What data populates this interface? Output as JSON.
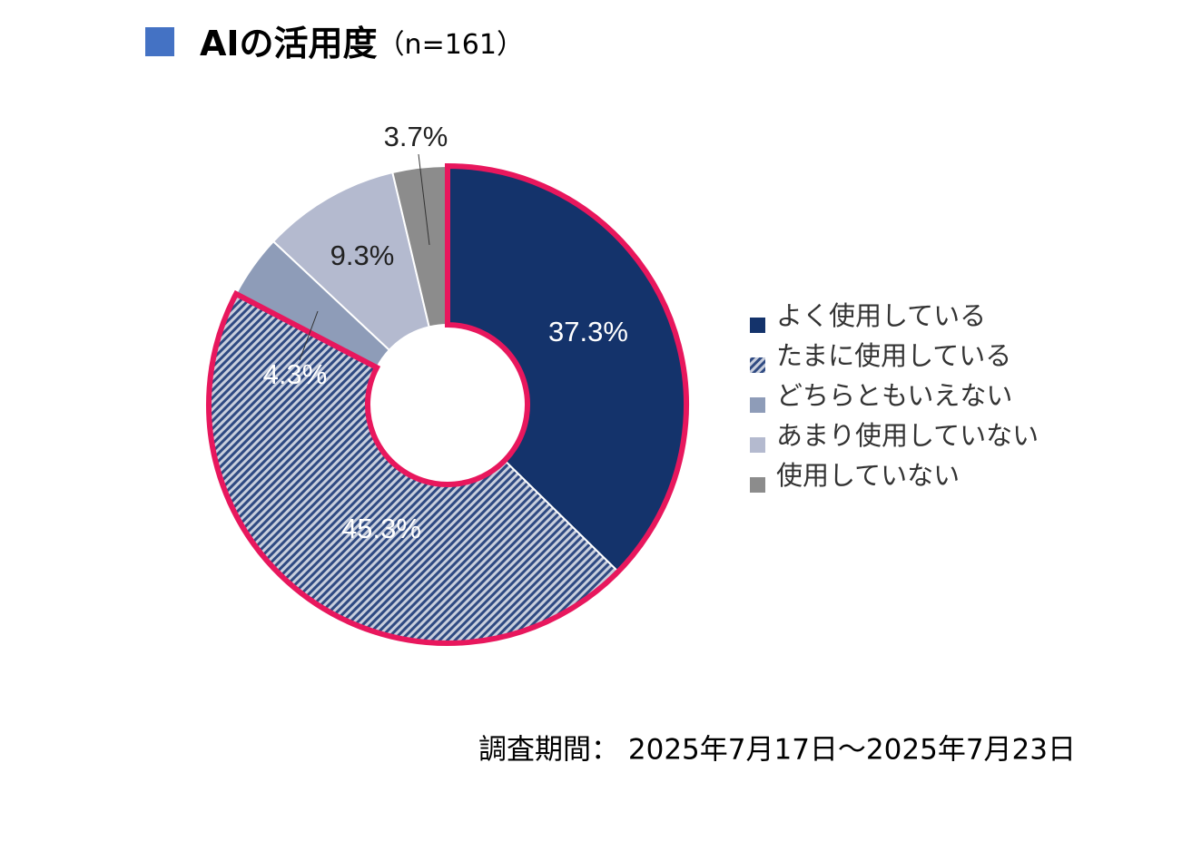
{
  "chart_data": {
    "type": "donut",
    "title": "AIの活用度",
    "subtitle": "（n=161）",
    "categories": [
      "よく使用している",
      "たまに使用している",
      "どちらともいえない",
      "あまり使用していない",
      "使用していない"
    ],
    "values": [
      37.3,
      45.3,
      4.3,
      9.3,
      3.7
    ],
    "value_labels": [
      "37.3%",
      "45.3%",
      "4.3%",
      "9.3%",
      "3.7%"
    ],
    "colors": [
      "#14336b",
      "#2f4a82",
      "#8e9cb8",
      "#b4bacf",
      "#8c8c8c"
    ],
    "hatched": [
      false,
      true,
      false,
      false,
      false
    ],
    "highlight": [
      0,
      1
    ],
    "highlight_color": "#e8175d",
    "footnote": "調査期間： 2025年7月17日～2025年7月23日"
  }
}
